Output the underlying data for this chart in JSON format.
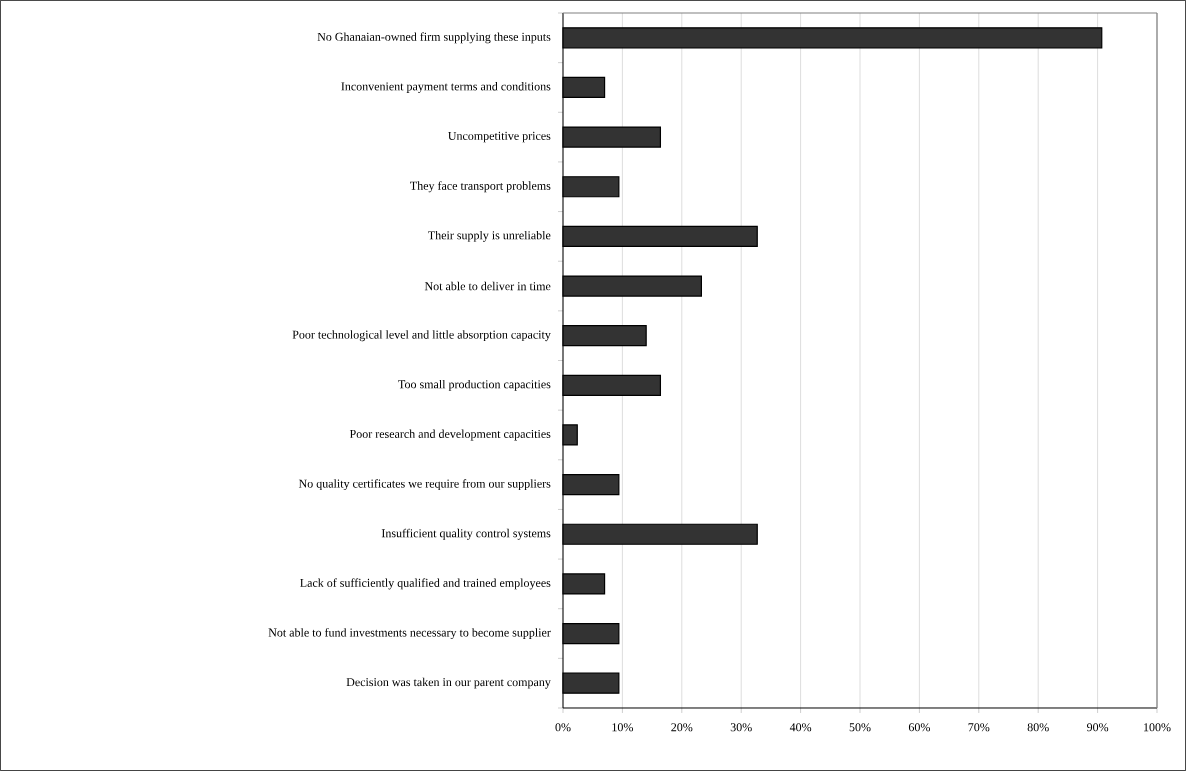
{
  "chart_data": {
    "type": "bar",
    "orientation": "horizontal",
    "categories": [
      "No Ghanaian-owned firm supplying these inputs",
      "Inconvenient payment terms and conditions",
      "Uncompetitive prices",
      "They face transport problems",
      "Their supply is unreliable",
      "Not able to deliver in time",
      "Poor technological level and little absorption capacity",
      "Too small production capacities",
      "Poor research and development capacities",
      "No quality certificates we require from our suppliers",
      "Insufficient quality control systems",
      "Lack of sufficiently qualified and trained employees",
      "Not able to fund investments necessary to become supplier",
      "Decision was taken in our parent company"
    ],
    "values": [
      90.7,
      7.0,
      16.4,
      9.4,
      32.7,
      23.3,
      14.0,
      16.4,
      2.4,
      9.4,
      32.7,
      7.0,
      9.4,
      9.4
    ],
    "color": "#333333",
    "xlim": [
      0,
      100
    ],
    "xticks": [
      {
        "value": 0,
        "label": "0%"
      },
      {
        "value": 10,
        "label": "10%"
      },
      {
        "value": 20,
        "label": "20%"
      },
      {
        "value": 30,
        "label": "30%"
      },
      {
        "value": 40,
        "label": "40%"
      },
      {
        "value": 50,
        "label": "50%"
      },
      {
        "value": 60,
        "label": "60%"
      },
      {
        "value": 70,
        "label": "70%"
      },
      {
        "value": 80,
        "label": "80%"
      },
      {
        "value": 90,
        "label": "90%"
      },
      {
        "value": 100,
        "label": "100%"
      }
    ],
    "grid": "x"
  }
}
